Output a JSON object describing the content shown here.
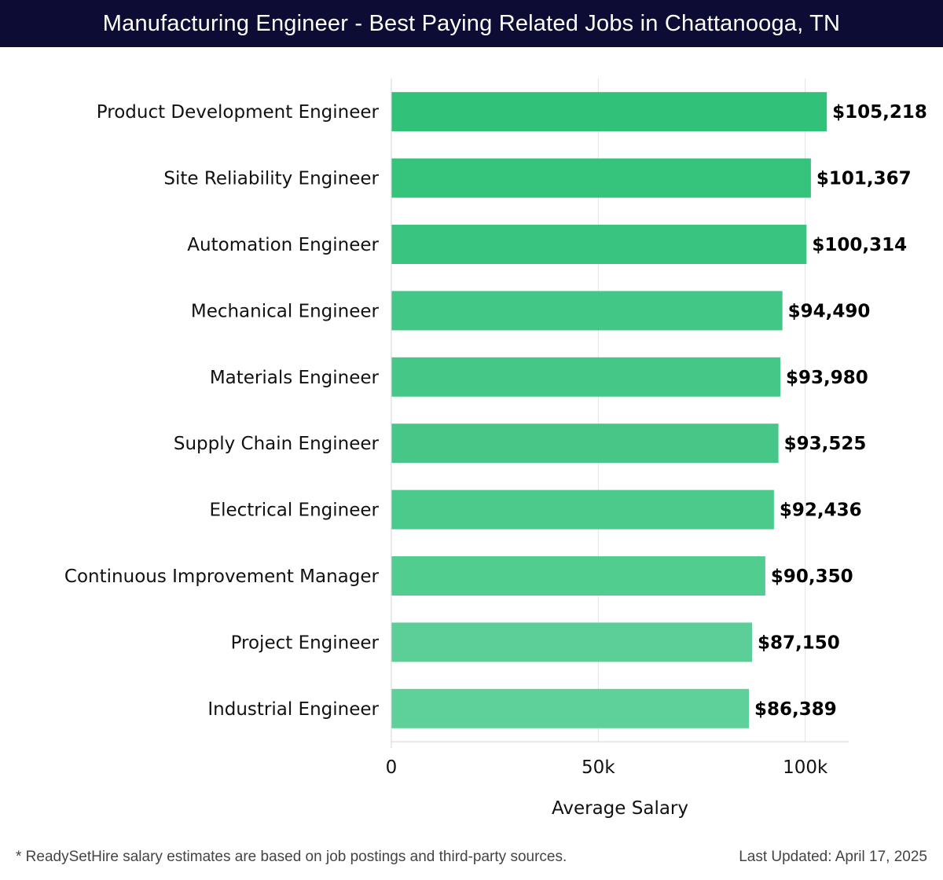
{
  "header": {
    "title": "Manufacturing Engineer - Best Paying Related Jobs in Chattanooga, TN"
  },
  "chart_data": {
    "type": "bar",
    "orientation": "horizontal",
    "categories": [
      "Product Development Engineer",
      "Site Reliability Engineer",
      "Automation Engineer",
      "Mechanical Engineer",
      "Materials Engineer",
      "Supply Chain Engineer",
      "Electrical Engineer",
      "Continuous Improvement Manager",
      "Project Engineer",
      "Industrial Engineer"
    ],
    "values": [
      105218,
      101367,
      100314,
      94490,
      93980,
      93525,
      92436,
      90350,
      87150,
      86389
    ],
    "value_labels": [
      "$105,218",
      "$101,367",
      "$100,314",
      "$94,490",
      "$93,980",
      "$93,525",
      "$92,436",
      "$90,350",
      "$87,150",
      "$86,389"
    ],
    "title": "Manufacturing Engineer - Best Paying Related Jobs in Chattanooga, TN",
    "xlabel": "Average Salary",
    "ylabel": "",
    "xlim": [
      0,
      110500
    ],
    "xticks": [
      0,
      50000,
      100000
    ],
    "xtick_labels": [
      "0",
      "50k",
      "100k"
    ],
    "grid": true,
    "colors": [
      "#2bbf74",
      "#2fc178",
      "#33c37b",
      "#3dc582",
      "#3fc583",
      "#40c584",
      "#44c887",
      "#4ccb8c",
      "#56cd94",
      "#58cf96"
    ]
  },
  "footer": {
    "note": "* ReadySetHire salary estimates are based on job postings and third-party sources.",
    "updated": "Last Updated: April 17, 2025"
  }
}
